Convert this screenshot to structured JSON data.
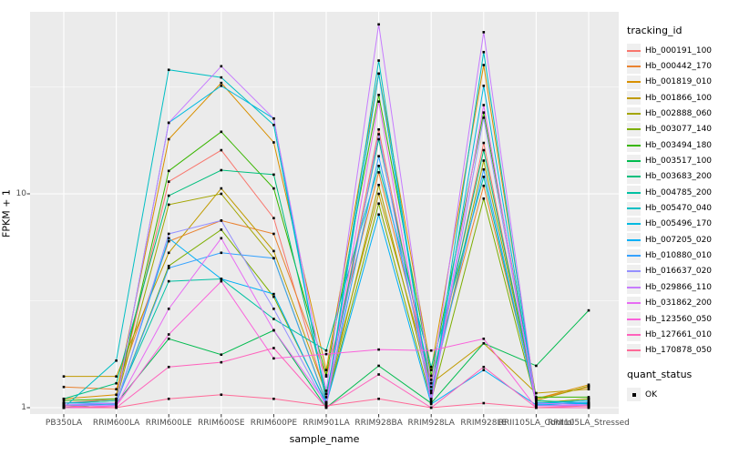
{
  "figure": {
    "background": "#FFFFFF",
    "panel_background": "#EBEBEB",
    "grid_color": "#FFFFFF",
    "tick_color": "#333333",
    "tick_label_color": "#4D4D4D",
    "axis_title_color": "#000000",
    "point_color": "#000000",
    "legend_key_fill": "#EFEFEF"
  },
  "axes": {
    "x_title": "sample_name",
    "y_title": "FPKM + 1",
    "y_ticks": [
      {
        "label": "10",
        "value": 10
      },
      {
        "label": "1",
        "value": 1
      }
    ]
  },
  "legend": {
    "tracking_title": "tracking_id",
    "quant_title": "quant_status",
    "quant_items": [
      {
        "label": "OK",
        "marker": "black-square"
      }
    ]
  },
  "chart_data": {
    "type": "line",
    "title": "",
    "xlabel": "sample_name",
    "ylabel": "FPKM + 1",
    "y_scale": "log10",
    "ylim": [
      0.93,
      70
    ],
    "grid": true,
    "legend_position": "right",
    "point_marker": "small black square (quant_status = OK at every point)",
    "x_categories": [
      "PB350LA",
      "RRIM600LA",
      "RRIM600LE",
      "RRIM600SE",
      "RRIM600PE",
      "RRIM901LA",
      "RRIM928BA",
      "RRIM928LA",
      "RRIM928LE",
      "RRII105LA_Control",
      "RRII105LA_Stressed"
    ],
    "series": [
      {
        "name": "Hb_000191_100",
        "color": "#F8766D",
        "values": [
          1.05,
          1.1,
          11.4,
          16.0,
          7.7,
          1.12,
          20.0,
          1.2,
          17.3,
          1.05,
          1.1
        ]
      },
      {
        "name": "Hb_000442_170",
        "color": "#EA8331",
        "values": [
          1.25,
          1.22,
          6.0,
          7.5,
          6.5,
          1.4,
          12.6,
          1.35,
          10.9,
          1.1,
          1.25
        ]
      },
      {
        "name": "Hb_001819_010",
        "color": "#D89000",
        "values": [
          1.1,
          1.15,
          18.0,
          33.0,
          17.4,
          1.5,
          36.5,
          1.5,
          40.0,
          1.1,
          1.28
        ]
      },
      {
        "name": "Hb_001866_100",
        "color": "#C09B00",
        "values": [
          1.4,
          1.4,
          5.3,
          10.6,
          5.4,
          1.16,
          10.0,
          1.3,
          2.0,
          1.17,
          1.22
        ]
      },
      {
        "name": "Hb_002888_060",
        "color": "#A3A500",
        "values": [
          1.05,
          1.08,
          8.9,
          10.0,
          5.0,
          1.06,
          11.0,
          1.17,
          14.3,
          1.08,
          1.26
        ]
      },
      {
        "name": "Hb_003077_140",
        "color": "#7CAE00",
        "values": [
          1.02,
          1.05,
          4.6,
          6.8,
          3.3,
          1.05,
          9.0,
          1.08,
          9.5,
          1.05,
          1.1
        ]
      },
      {
        "name": "Hb_003494_180",
        "color": "#39B600",
        "values": [
          1.08,
          1.1,
          12.8,
          19.5,
          10.6,
          1.42,
          29.0,
          1.41,
          24.0,
          1.12,
          1.12
        ]
      },
      {
        "name": "Hb_003517_100",
        "color": "#00BB4E",
        "values": [
          1.0,
          1.05,
          2.1,
          1.77,
          2.3,
          1.0,
          1.57,
          1.05,
          2.0,
          1.57,
          2.85
        ]
      },
      {
        "name": "Hb_003683_200",
        "color": "#00BF7D",
        "values": [
          1.1,
          1.3,
          9.8,
          12.9,
          12.3,
          1.16,
          18.0,
          1.3,
          16.0,
          1.08,
          1.05
        ]
      },
      {
        "name": "Hb_004785_200",
        "color": "#00C1A3",
        "values": [
          1.05,
          1.08,
          3.9,
          4.0,
          2.6,
          1.85,
          13.5,
          1.55,
          12.0,
          1.06,
          1.04
        ]
      },
      {
        "name": "Hb_005470_040",
        "color": "#00BFC4",
        "values": [
          1.0,
          1.66,
          38.0,
          35.0,
          21.0,
          1.06,
          42.0,
          1.06,
          46.0,
          1.03,
          1.02
        ]
      },
      {
        "name": "Hb_005496_170",
        "color": "#00BAE0",
        "values": [
          1.02,
          1.05,
          21.5,
          32.0,
          22.5,
          1.05,
          36.5,
          1.1,
          32.0,
          1.05,
          1.08
        ]
      },
      {
        "name": "Hb_007205_020",
        "color": "#00B0F6",
        "values": [
          1.03,
          1.04,
          6.2,
          4.0,
          3.4,
          1.04,
          8.0,
          1.04,
          1.5,
          1.03,
          1.05
        ]
      },
      {
        "name": "Hb_010880_010",
        "color": "#35A2FF",
        "values": [
          1.05,
          1.05,
          4.5,
          5.3,
          5.0,
          1.05,
          15.0,
          1.2,
          13.0,
          1.04,
          1.06
        ]
      },
      {
        "name": "Hb_016637_020",
        "color": "#9590FF",
        "values": [
          1.02,
          1.03,
          6.5,
          7.5,
          2.9,
          1.02,
          19.0,
          1.05,
          22.7,
          1.02,
          1.03
        ]
      },
      {
        "name": "Hb_029866_110",
        "color": "#C77CFF",
        "values": [
          1.03,
          1.05,
          21.5,
          39.5,
          22.5,
          1.2,
          62.0,
          1.25,
          57.0,
          1.05,
          1.03
        ]
      },
      {
        "name": "Hb_031862_200",
        "color": "#E76BF3",
        "values": [
          1.0,
          1.02,
          2.9,
          6.2,
          2.3,
          1.05,
          27.0,
          1.08,
          26.0,
          1.02,
          1.02
        ]
      },
      {
        "name": "Hb_123560_050",
        "color": "#FA62DB",
        "values": [
          1.0,
          1.02,
          2.2,
          3.9,
          1.7,
          1.78,
          1.87,
          1.85,
          2.1,
          1.0,
          1.0
        ]
      },
      {
        "name": "Hb_127661_010",
        "color": "#FF62BC",
        "values": [
          1.0,
          1.0,
          1.55,
          1.63,
          1.9,
          1.0,
          1.43,
          1.0,
          1.55,
          1.0,
          1.0
        ]
      },
      {
        "name": "Hb_170878_050",
        "color": "#FF6A98",
        "values": [
          1.02,
          1.0,
          1.1,
          1.15,
          1.1,
          1.02,
          1.1,
          1.0,
          1.05,
          1.0,
          1.02
        ]
      }
    ]
  }
}
